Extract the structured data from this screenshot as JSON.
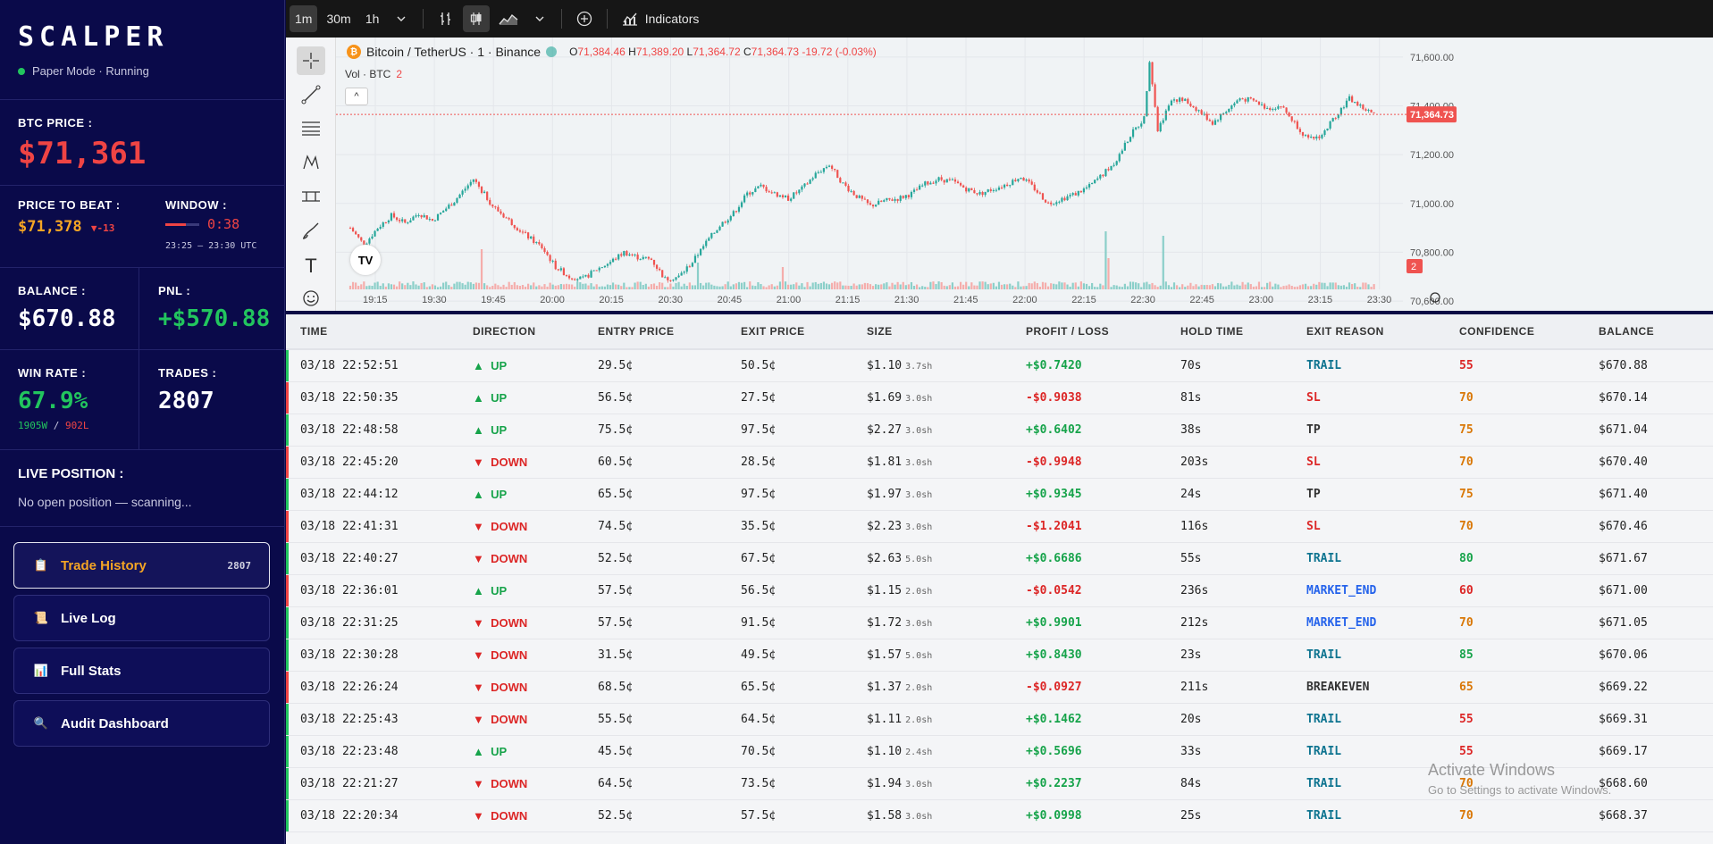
{
  "app": {
    "logo": "SCALPER",
    "status": "Paper Mode · Running"
  },
  "btc_price": {
    "label": "BTC PRICE :",
    "value": "$71,361"
  },
  "price_to_beat": {
    "label": "PRICE TO BEAT :",
    "value": "$71,378",
    "delta": "▼-13"
  },
  "window": {
    "label": "WINDOW :",
    "timer": "0:38",
    "range": "23:25 — 23:30 UTC",
    "progress": 0.6
  },
  "balance": {
    "label": "BALANCE :",
    "value": "$670.88"
  },
  "pnl": {
    "label": "PNL :",
    "value": "+$570.88"
  },
  "win_rate": {
    "label": "WIN RATE :",
    "value": "67.9%",
    "wins": "1905W",
    "sep": "/",
    "losses": "902L"
  },
  "trades": {
    "label": "TRADES :",
    "value": "2807"
  },
  "live_position": {
    "label": "LIVE POSITION :",
    "text": "No open position — scanning..."
  },
  "nav": [
    {
      "label": "Trade History",
      "count": "2807",
      "icon": "clipboard-icon",
      "glyph": "📋"
    },
    {
      "label": "Live Log",
      "icon": "scroll-icon",
      "glyph": "📜"
    },
    {
      "label": "Full Stats",
      "icon": "bar-chart-icon",
      "glyph": "📊"
    },
    {
      "label": "Audit Dashboard",
      "icon": "magnifier-icon",
      "glyph": "🔍"
    }
  ],
  "toolbar": {
    "intervals": [
      "1m",
      "30m",
      "1h"
    ],
    "indicators_label": "Indicators"
  },
  "chart_header": {
    "symbol": "Bitcoin / TetherUS · 1 · Binance",
    "o_label": "O",
    "o": "71,384.46",
    "h_label": "H",
    "h": "71,389.20",
    "l_label": "L",
    "l": "71,364.72",
    "c_label": "C",
    "c": "71,364.73",
    "change": "-19.72 (-0.03%)",
    "vol_label": "Vol · BTC",
    "vol_value": "2",
    "price_badge": "71,364.73",
    "vol_badge": "2"
  },
  "chart_data": {
    "type": "candlestick",
    "x_ticks": [
      "19:15",
      "19:30",
      "19:45",
      "20:00",
      "20:15",
      "20:30",
      "20:45",
      "21:00",
      "21:15",
      "21:30",
      "21:45",
      "22:00",
      "22:15",
      "22:30",
      "22:45",
      "23:00",
      "23:15",
      "23:30"
    ],
    "y_ticks": [
      71600,
      71400,
      71200,
      71000,
      70800,
      70600
    ],
    "y_tick_labels": [
      "71,600.00",
      "71,400.00",
      "71,200.00",
      "71,000.00",
      "70,800.00",
      "70,600.00"
    ],
    "ylim": [
      70560,
      71680
    ],
    "last_price": 71364.73,
    "price_path": [
      [
        0,
        70900
      ],
      [
        5,
        70830
      ],
      [
        10,
        70900
      ],
      [
        15,
        70950
      ],
      [
        20,
        70920
      ],
      [
        25,
        70960
      ],
      [
        30,
        70930
      ],
      [
        38,
        71010
      ],
      [
        45,
        71100
      ],
      [
        52,
        70990
      ],
      [
        58,
        70930
      ],
      [
        63,
        70880
      ],
      [
        70,
        70820
      ],
      [
        75,
        70740
      ],
      [
        80,
        70700
      ],
      [
        85,
        70690
      ],
      [
        90,
        70730
      ],
      [
        95,
        70760
      ],
      [
        100,
        70800
      ],
      [
        105,
        70780
      ],
      [
        110,
        70770
      ],
      [
        115,
        70690
      ],
      [
        120,
        70700
      ],
      [
        125,
        70760
      ],
      [
        130,
        70840
      ],
      [
        135,
        70910
      ],
      [
        140,
        70960
      ],
      [
        145,
        71040
      ],
      [
        150,
        71070
      ],
      [
        155,
        71040
      ],
      [
        160,
        71020
      ],
      [
        165,
        71060
      ],
      [
        170,
        71120
      ],
      [
        175,
        71160
      ],
      [
        180,
        71080
      ],
      [
        185,
        71030
      ],
      [
        190,
        70990
      ],
      [
        195,
        71010
      ],
      [
        200,
        71020
      ],
      [
        205,
        71040
      ],
      [
        210,
        71080
      ],
      [
        215,
        71100
      ],
      [
        220,
        71090
      ],
      [
        225,
        71060
      ],
      [
        230,
        71040
      ],
      [
        235,
        71060
      ],
      [
        240,
        71080
      ],
      [
        245,
        71110
      ],
      [
        250,
        71060
      ],
      [
        255,
        71000
      ],
      [
        260,
        71020
      ],
      [
        265,
        71040
      ],
      [
        270,
        71070
      ],
      [
        275,
        71120
      ],
      [
        280,
        71180
      ],
      [
        285,
        71280
      ],
      [
        290,
        71350
      ],
      [
        292,
        71590
      ],
      [
        295,
        71300
      ],
      [
        300,
        71430
      ],
      [
        305,
        71420
      ],
      [
        310,
        71380
      ],
      [
        315,
        71330
      ],
      [
        320,
        71380
      ],
      [
        325,
        71430
      ],
      [
        330,
        71420
      ],
      [
        335,
        71390
      ],
      [
        340,
        71400
      ],
      [
        345,
        71330
      ],
      [
        350,
        71260
      ],
      [
        355,
        71280
      ],
      [
        360,
        71360
      ],
      [
        365,
        71430
      ],
      [
        370,
        71390
      ],
      [
        374,
        71365
      ]
    ],
    "volume_spikes": [
      {
        "x": "19:35",
        "value": 9
      },
      {
        "x": "20:40",
        "value": 6
      },
      {
        "x": "21:05",
        "value": 5
      },
      {
        "x": "22:42",
        "value": 13
      },
      {
        "x": "22:43",
        "value": 7
      },
      {
        "x": "23:00",
        "value": 12
      }
    ]
  },
  "table": {
    "columns": [
      "TIME",
      "DIRECTION",
      "ENTRY PRICE",
      "EXIT PRICE",
      "SIZE",
      "PROFIT / LOSS",
      "HOLD TIME",
      "EXIT REASON",
      "CONFIDENCE",
      "BALANCE"
    ],
    "rows": [
      {
        "time": "03/18 22:52:51",
        "dir": "UP",
        "arrow": "▲",
        "entry": "29.5¢",
        "exit": "50.5¢",
        "size": "$1.10",
        "sh": "3.7sh",
        "pl": "+$0.7420",
        "hold": "70s",
        "reason": "TRAIL",
        "conf": "55",
        "bal": "$670.88"
      },
      {
        "time": "03/18 22:50:35",
        "dir": "UP",
        "arrow": "▲",
        "entry": "56.5¢",
        "exit": "27.5¢",
        "size": "$1.69",
        "sh": "3.0sh",
        "pl": "-$0.9038",
        "hold": "81s",
        "reason": "SL",
        "conf": "70",
        "bal": "$670.14"
      },
      {
        "time": "03/18 22:48:58",
        "dir": "UP",
        "arrow": "▲",
        "entry": "75.5¢",
        "exit": "97.5¢",
        "size": "$2.27",
        "sh": "3.0sh",
        "pl": "+$0.6402",
        "hold": "38s",
        "reason": "TP",
        "conf": "75",
        "bal": "$671.04"
      },
      {
        "time": "03/18 22:45:20",
        "dir": "DOWN",
        "arrow": "▼",
        "entry": "60.5¢",
        "exit": "28.5¢",
        "size": "$1.81",
        "sh": "3.0sh",
        "pl": "-$0.9948",
        "hold": "203s",
        "reason": "SL",
        "conf": "70",
        "bal": "$670.40"
      },
      {
        "time": "03/18 22:44:12",
        "dir": "UP",
        "arrow": "▲",
        "entry": "65.5¢",
        "exit": "97.5¢",
        "size": "$1.97",
        "sh": "3.0sh",
        "pl": "+$0.9345",
        "hold": "24s",
        "reason": "TP",
        "conf": "75",
        "bal": "$671.40"
      },
      {
        "time": "03/18 22:41:31",
        "dir": "DOWN",
        "arrow": "▼",
        "entry": "74.5¢",
        "exit": "35.5¢",
        "size": "$2.23",
        "sh": "3.0sh",
        "pl": "-$1.2041",
        "hold": "116s",
        "reason": "SL",
        "conf": "70",
        "bal": "$670.46"
      },
      {
        "time": "03/18 22:40:27",
        "dir": "DOWN",
        "arrow": "▼",
        "entry": "52.5¢",
        "exit": "67.5¢",
        "size": "$2.63",
        "sh": "5.0sh",
        "pl": "+$0.6686",
        "hold": "55s",
        "reason": "TRAIL",
        "conf": "80",
        "bal": "$671.67"
      },
      {
        "time": "03/18 22:36:01",
        "dir": "UP",
        "arrow": "▲",
        "entry": "57.5¢",
        "exit": "56.5¢",
        "size": "$1.15",
        "sh": "2.0sh",
        "pl": "-$0.0542",
        "hold": "236s",
        "reason": "MARKET_END",
        "conf": "60",
        "bal": "$671.00"
      },
      {
        "time": "03/18 22:31:25",
        "dir": "DOWN",
        "arrow": "▼",
        "entry": "57.5¢",
        "exit": "91.5¢",
        "size": "$1.72",
        "sh": "3.0sh",
        "pl": "+$0.9901",
        "hold": "212s",
        "reason": "MARKET_END",
        "conf": "70",
        "bal": "$671.05"
      },
      {
        "time": "03/18 22:30:28",
        "dir": "DOWN",
        "arrow": "▼",
        "entry": "31.5¢",
        "exit": "49.5¢",
        "size": "$1.57",
        "sh": "5.0sh",
        "pl": "+$0.8430",
        "hold": "23s",
        "reason": "TRAIL",
        "conf": "85",
        "bal": "$670.06"
      },
      {
        "time": "03/18 22:26:24",
        "dir": "DOWN",
        "arrow": "▼",
        "entry": "68.5¢",
        "exit": "65.5¢",
        "size": "$1.37",
        "sh": "2.0sh",
        "pl": "-$0.0927",
        "hold": "211s",
        "reason": "BREAKEVEN",
        "conf": "65",
        "bal": "$669.22"
      },
      {
        "time": "03/18 22:25:43",
        "dir": "DOWN",
        "arrow": "▼",
        "entry": "55.5¢",
        "exit": "64.5¢",
        "size": "$1.11",
        "sh": "2.0sh",
        "pl": "+$0.1462",
        "hold": "20s",
        "reason": "TRAIL",
        "conf": "55",
        "bal": "$669.31"
      },
      {
        "time": "03/18 22:23:48",
        "dir": "UP",
        "arrow": "▲",
        "entry": "45.5¢",
        "exit": "70.5¢",
        "size": "$1.10",
        "sh": "2.4sh",
        "pl": "+$0.5696",
        "hold": "33s",
        "reason": "TRAIL",
        "conf": "55",
        "bal": "$669.17"
      },
      {
        "time": "03/18 22:21:27",
        "dir": "DOWN",
        "arrow": "▼",
        "entry": "64.5¢",
        "exit": "73.5¢",
        "size": "$1.94",
        "sh": "3.0sh",
        "pl": "+$0.2237",
        "hold": "84s",
        "reason": "TRAIL",
        "conf": "70",
        "bal": "$668.60"
      },
      {
        "time": "03/18 22:20:34",
        "dir": "DOWN",
        "arrow": "▼",
        "entry": "52.5¢",
        "exit": "57.5¢",
        "size": "$1.58",
        "sh": "3.0sh",
        "pl": "+$0.0998",
        "hold": "25s",
        "reason": "TRAIL",
        "conf": "70",
        "bal": "$668.37"
      }
    ]
  },
  "watermark": {
    "line1": "Activate Windows",
    "line2": "Go to Settings to activate Windows."
  },
  "colors": {
    "up": "#16a34a",
    "down": "#dc2626",
    "candle_up": "#26a69a",
    "candle_down": "#ef5350",
    "accent": "#f5a524"
  }
}
